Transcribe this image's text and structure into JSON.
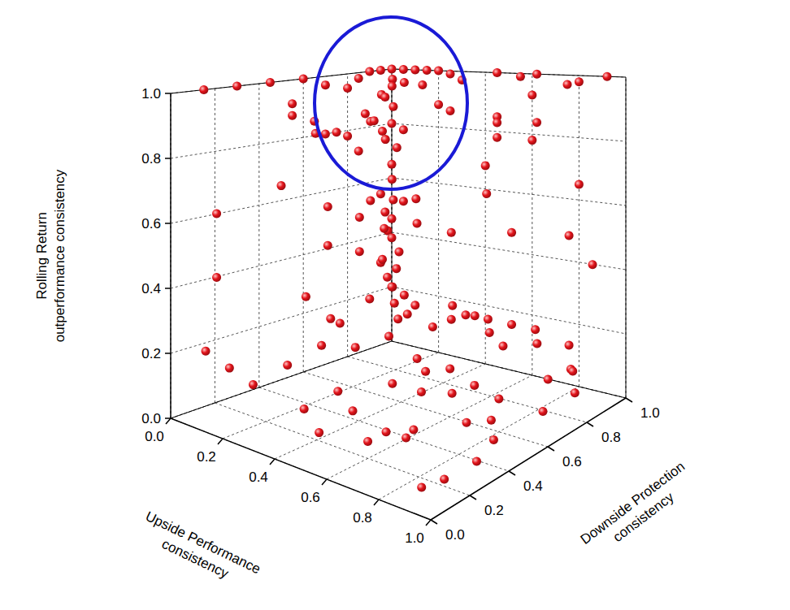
{
  "chart_data": {
    "type": "scatter3d",
    "xlabel": "Upside Performance\nconsistency",
    "ylabel": "Downside Protection\nconsistency",
    "zlabel": "Rolling Return\noutperformance consistency",
    "xlim": [
      0,
      1
    ],
    "ylim": [
      0,
      1
    ],
    "zlim": [
      0,
      1
    ],
    "xticks": [
      {
        "value": 0,
        "label": "0.0"
      },
      {
        "value": 0.2,
        "label": "0.2"
      },
      {
        "value": 0.4,
        "label": "0.4"
      },
      {
        "value": 0.6,
        "label": "0.6"
      },
      {
        "value": 0.8,
        "label": "0.8"
      },
      {
        "value": 1,
        "label": "1.0"
      }
    ],
    "yticks": [
      {
        "value": 0,
        "label": "0.0"
      },
      {
        "value": 0.2,
        "label": "0.2"
      },
      {
        "value": 0.4,
        "label": "0.4"
      },
      {
        "value": 0.6,
        "label": "0.6"
      },
      {
        "value": 0.8,
        "label": "0.8"
      },
      {
        "value": 1,
        "label": "1.0"
      }
    ],
    "zticks": [
      {
        "value": 0,
        "label": "0.0"
      },
      {
        "value": 0.2,
        "label": "0.2"
      },
      {
        "value": 0.4,
        "label": "0.4"
      },
      {
        "value": 0.6,
        "label": "0.6"
      },
      {
        "value": 0.8,
        "label": "0.8"
      },
      {
        "value": 1,
        "label": "1.0"
      }
    ],
    "grid": true,
    "color": "#e3141b",
    "marker": "sphere",
    "points": [
      [
        0.0,
        1.0,
        1.0
      ],
      [
        0.05,
        1.0,
        1.0
      ],
      [
        0.1,
        1.0,
        1.0
      ],
      [
        0.15,
        1.0,
        1.0
      ],
      [
        0.2,
        1.0,
        1.0
      ],
      [
        0.25,
        1.0,
        0.99
      ],
      [
        0.0,
        0.95,
        1.0
      ],
      [
        0.0,
        0.9,
        1.0
      ],
      [
        0.0,
        0.85,
        0.98
      ],
      [
        0.05,
        0.95,
        0.97
      ],
      [
        0.1,
        0.95,
        0.96
      ],
      [
        0.02,
        0.98,
        0.94
      ],
      [
        0.15,
        0.98,
        0.95
      ],
      [
        0.3,
        1.0,
        0.97
      ],
      [
        0.0,
        0.8,
        0.95
      ],
      [
        0.05,
        0.9,
        0.92
      ],
      [
        0.0,
        0.97,
        0.9
      ],
      [
        0.1,
        0.9,
        0.88
      ],
      [
        0.2,
        1.0,
        0.88
      ],
      [
        0.25,
        1.0,
        0.86
      ],
      [
        0.0,
        0.88,
        0.85
      ],
      [
        0.05,
        0.85,
        0.83
      ],
      [
        0.0,
        0.92,
        0.82
      ],
      [
        0.0,
        1.0,
        0.8
      ],
      [
        0.05,
        1.0,
        0.78
      ],
      [
        0.0,
        0.8,
        0.78
      ],
      [
        0.1,
        0.85,
        0.8
      ],
      [
        0.0,
        0.75,
        0.8
      ],
      [
        0.02,
        0.95,
        0.75
      ],
      [
        0.0,
        0.85,
        0.72
      ],
      [
        0.05,
        0.97,
        0.72
      ],
      [
        0.0,
        1.0,
        0.65
      ],
      [
        0.02,
        0.98,
        0.6
      ],
      [
        0.0,
        0.95,
        0.55
      ],
      [
        0.05,
        1.0,
        0.52
      ],
      [
        0.0,
        0.97,
        0.48
      ],
      [
        0.0,
        1.0,
        0.45
      ],
      [
        0.03,
        0.95,
        0.42
      ],
      [
        0.0,
        1.0,
        0.38
      ],
      [
        0.05,
        0.98,
        0.34
      ],
      [
        0.0,
        0.95,
        0.3
      ],
      [
        0.02,
        1.0,
        0.27
      ],
      [
        0.0,
        0.98,
        0.24
      ],
      [
        0.05,
        0.95,
        0.22
      ],
      [
        0.0,
        1.0,
        0.2
      ],
      [
        0.1,
        0.95,
        0.2
      ],
      [
        0.0,
        0.9,
        0.18
      ],
      [
        0.03,
        0.98,
        0.15
      ],
      [
        0.1,
        1.0,
        0.15
      ],
      [
        0.0,
        0.15,
        1.0
      ],
      [
        0.0,
        0.3,
        1.0
      ],
      [
        0.0,
        0.45,
        1.0
      ],
      [
        0.0,
        0.6,
        1.0
      ],
      [
        0.0,
        0.7,
        0.97
      ],
      [
        0.0,
        0.55,
        0.92
      ],
      [
        0.0,
        0.65,
        0.85
      ],
      [
        0.0,
        0.7,
        0.8
      ],
      [
        0.45,
        1.0,
        1.0
      ],
      [
        0.55,
        1.0,
        0.99
      ],
      [
        0.62,
        1.0,
        1.0
      ],
      [
        0.75,
        1.0,
        0.97
      ],
      [
        0.8,
        1.0,
        0.98
      ],
      [
        0.92,
        1.0,
        1.0
      ],
      [
        0.6,
        1.0,
        0.93
      ],
      [
        0.45,
        1.0,
        0.85
      ],
      [
        0.45,
        1.0,
        0.78
      ],
      [
        0.6,
        1.0,
        0.78
      ],
      [
        0.05,
        0.15,
        0.62
      ],
      [
        0.05,
        0.15,
        0.42
      ],
      [
        0.0,
        0.5,
        0.65
      ],
      [
        0.1,
        0.6,
        0.58
      ],
      [
        0.1,
        0.6,
        0.45
      ],
      [
        0.1,
        0.5,
        0.3
      ],
      [
        0.05,
        0.6,
        0.82
      ],
      [
        0.0,
        0.55,
        0.88
      ],
      [
        0.4,
        1.0,
        0.68
      ],
      [
        0.45,
        0.95,
        0.6
      ],
      [
        0.6,
        0.9,
        0.5
      ],
      [
        0.8,
        1.0,
        0.65
      ],
      [
        0.8,
        0.95,
        0.5
      ],
      [
        0.9,
        0.95,
        0.42
      ],
      [
        0.3,
        0.95,
        0.45
      ],
      [
        0.15,
        0.95,
        0.55
      ],
      [
        0.2,
        0.9,
        0.48
      ],
      [
        0.45,
        1.0,
        0.83
      ],
      [
        0.62,
        1.0,
        0.84
      ],
      [
        0.05,
        0.85,
        0.55
      ],
      [
        0.1,
        0.9,
        0.55
      ],
      [
        0.05,
        0.8,
        0.5
      ],
      [
        0.08,
        0.88,
        0.45
      ],
      [
        0.05,
        0.8,
        0.38
      ],
      [
        0.1,
        0.85,
        0.35
      ],
      [
        0.2,
        0.3,
        0.15
      ],
      [
        0.25,
        0.4,
        0.2
      ],
      [
        0.3,
        0.5,
        0.18
      ],
      [
        0.35,
        0.6,
        0.2
      ],
      [
        0.3,
        0.7,
        0.22
      ],
      [
        0.4,
        0.75,
        0.2
      ],
      [
        0.45,
        0.85,
        0.22
      ],
      [
        0.5,
        0.9,
        0.2
      ],
      [
        0.55,
        0.85,
        0.18
      ],
      [
        0.6,
        0.9,
        0.2
      ],
      [
        0.65,
        0.8,
        0.17
      ],
      [
        0.7,
        0.9,
        0.2
      ],
      [
        0.75,
        0.85,
        0.18
      ],
      [
        0.8,
        0.95,
        0.15
      ],
      [
        0.85,
        0.9,
        0.1
      ],
      [
        0.9,
        0.85,
        0.12
      ],
      [
        0.95,
        0.8,
        0.08
      ],
      [
        0.6,
        0.6,
        0.15
      ],
      [
        0.5,
        0.6,
        0.12
      ],
      [
        0.45,
        0.5,
        0.1
      ],
      [
        0.55,
        0.5,
        0.2
      ],
      [
        0.65,
        0.55,
        0.1
      ],
      [
        0.7,
        0.6,
        0.12
      ],
      [
        0.75,
        0.5,
        0.05
      ],
      [
        0.8,
        0.6,
        0.1
      ],
      [
        0.85,
        0.5,
        0.08
      ],
      [
        0.9,
        0.45,
        0.05
      ],
      [
        0.95,
        0.3,
        0.05
      ],
      [
        0.9,
        0.2,
        0.02
      ],
      [
        0.85,
        0.15,
        0.0
      ],
      [
        0.6,
        0.2,
        0.05
      ],
      [
        0.5,
        0.25,
        0.1
      ],
      [
        0.4,
        0.3,
        0.12
      ],
      [
        0.35,
        0.2,
        0.08
      ],
      [
        0.15,
        0.2,
        0.1
      ],
      [
        0.1,
        0.15,
        0.15
      ],
      [
        0.05,
        0.1,
        0.2
      ],
      [
        0.2,
        0.5,
        0.25
      ],
      [
        0.15,
        0.6,
        0.2
      ],
      [
        0.25,
        0.8,
        0.2
      ],
      [
        0.35,
        0.9,
        0.22
      ],
      [
        0.3,
        0.95,
        0.15
      ],
      [
        0.4,
        0.95,
        0.18
      ],
      [
        0.7,
        0.3,
        0.08
      ],
      [
        0.75,
        0.2,
        0.1
      ],
      [
        0.65,
        0.4,
        0.15
      ],
      [
        0.55,
        0.35,
        0.02
      ],
      [
        0.45,
        0.15,
        0.05
      ],
      [
        0.98,
        0.6,
        0.1
      ],
      [
        0.92,
        0.7,
        0.15
      ]
    ]
  }
}
